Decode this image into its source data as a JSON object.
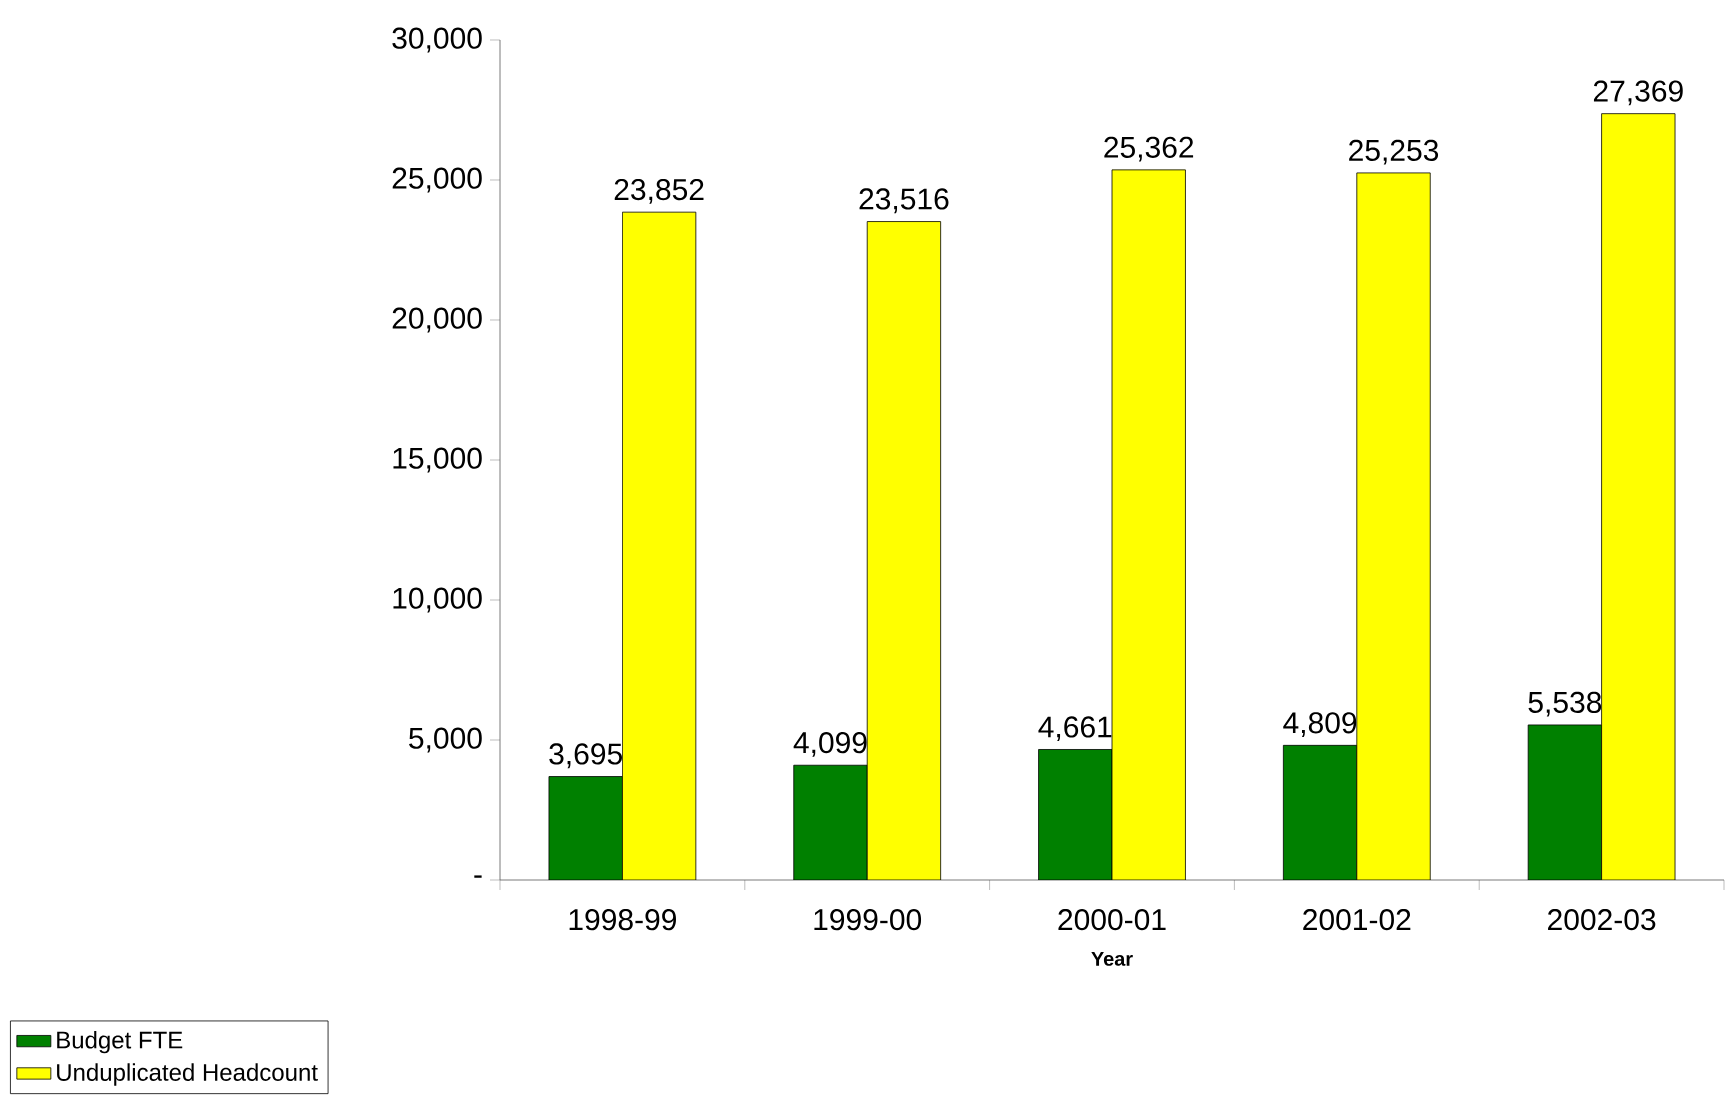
{
  "chart_data": {
    "type": "bar",
    "xlabel": "Year",
    "categories": [
      "1998-99",
      "1999-00",
      "2000-01",
      "2001-02",
      "2002-03"
    ],
    "series": [
      {
        "name": "Budget FTE",
        "color": "#008000",
        "values": [
          3695,
          4099,
          4661,
          4809,
          5538
        ],
        "value_labels": [
          "3,695",
          "4,099",
          "4,661",
          "4,809",
          "5,538"
        ]
      },
      {
        "name": "Unduplicated Headcount",
        "color": "#ffff00",
        "values": [
          23852,
          23516,
          25362,
          25253,
          27369
        ],
        "value_labels": [
          "23,852",
          "23,516",
          "25,362",
          "25,253",
          "27,369"
        ]
      }
    ],
    "ylim": [
      0,
      30000
    ],
    "yticks": [
      {
        "value": 0,
        "label": "-"
      },
      {
        "value": 5000,
        "label": "5,000"
      },
      {
        "value": 10000,
        "label": "10,000"
      },
      {
        "value": 15000,
        "label": "15,000"
      },
      {
        "value": 20000,
        "label": "20,000"
      },
      {
        "value": 25000,
        "label": "25,000"
      },
      {
        "value": 30000,
        "label": "30,000"
      }
    ],
    "grid": false,
    "legend": "bottom left"
  }
}
